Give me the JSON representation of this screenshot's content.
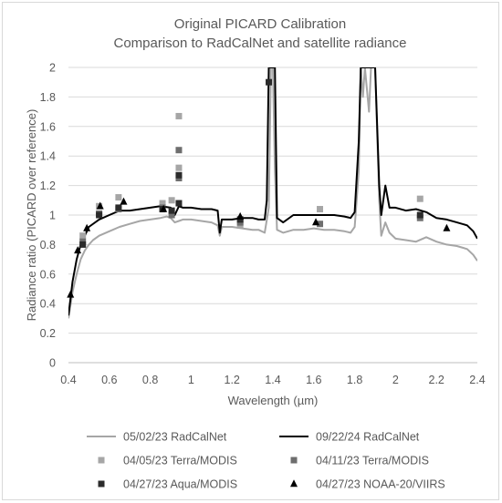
{
  "chart_data": {
    "type": "line",
    "title_line1": "Original PICARD Calibration",
    "title_line2": "Comparison to RadCalNet and satellite radiance",
    "xlabel": "Wavelength (µm)",
    "ylabel": "Radiance ratio (PICARD over reference)",
    "xlim": [
      0.4,
      2.4
    ],
    "ylim": [
      0,
      2
    ],
    "x_ticks": [
      "0.4",
      "0.6",
      "0.8",
      "1",
      "1.2",
      "1.4",
      "1.6",
      "1.8",
      "2",
      "2.2",
      "2.4"
    ],
    "y_ticks": [
      "0",
      "0.2",
      "0.4",
      "0.6",
      "0.8",
      "1",
      "1.2",
      "1.4",
      "1.6",
      "1.8",
      "2"
    ],
    "grid": "horizontal",
    "legend_position": "bottom",
    "series": [
      {
        "name": "05/02/23 RadCalNet",
        "kind": "line",
        "color": "#a6a6a6",
        "points": [
          [
            0.4,
            0.3
          ],
          [
            0.42,
            0.48
          ],
          [
            0.44,
            0.6
          ],
          [
            0.46,
            0.7
          ],
          [
            0.48,
            0.76
          ],
          [
            0.5,
            0.8
          ],
          [
            0.52,
            0.83
          ],
          [
            0.55,
            0.86
          ],
          [
            0.6,
            0.89
          ],
          [
            0.65,
            0.92
          ],
          [
            0.7,
            0.94
          ],
          [
            0.75,
            0.96
          ],
          [
            0.8,
            0.97
          ],
          [
            0.85,
            0.98
          ],
          [
            0.88,
            0.99
          ],
          [
            0.9,
            0.98
          ],
          [
            0.92,
            0.95
          ],
          [
            0.94,
            0.96
          ],
          [
            0.96,
            0.97
          ],
          [
            1.0,
            0.97
          ],
          [
            1.05,
            0.96
          ],
          [
            1.1,
            0.95
          ],
          [
            1.13,
            0.93
          ],
          [
            1.14,
            0.86
          ],
          [
            1.15,
            0.92
          ],
          [
            1.2,
            0.92
          ],
          [
            1.25,
            0.91
          ],
          [
            1.3,
            0.9
          ],
          [
            1.33,
            0.9
          ],
          [
            1.36,
            0.88
          ],
          [
            1.38,
            1.05
          ],
          [
            1.39,
            2.0
          ],
          [
            1.4,
            2.0
          ],
          [
            1.41,
            1.3
          ],
          [
            1.42,
            0.9
          ],
          [
            1.45,
            0.88
          ],
          [
            1.5,
            0.9
          ],
          [
            1.55,
            0.9
          ],
          [
            1.6,
            0.91
          ],
          [
            1.65,
            0.9
          ],
          [
            1.7,
            0.9
          ],
          [
            1.75,
            0.89
          ],
          [
            1.78,
            0.88
          ],
          [
            1.8,
            0.92
          ],
          [
            1.82,
            1.3
          ],
          [
            1.83,
            2.0
          ],
          [
            1.84,
            1.8
          ],
          [
            1.85,
            2.0
          ],
          [
            1.87,
            1.7
          ],
          [
            1.88,
            2.0
          ],
          [
            1.9,
            2.0
          ],
          [
            1.92,
            1.1
          ],
          [
            1.93,
            0.86
          ],
          [
            1.95,
            0.95
          ],
          [
            1.97,
            0.88
          ],
          [
            2.0,
            0.84
          ],
          [
            2.05,
            0.83
          ],
          [
            2.1,
            0.82
          ],
          [
            2.15,
            0.85
          ],
          [
            2.2,
            0.82
          ],
          [
            2.25,
            0.8
          ],
          [
            2.3,
            0.79
          ],
          [
            2.35,
            0.77
          ],
          [
            2.38,
            0.73
          ],
          [
            2.4,
            0.69
          ]
        ]
      },
      {
        "name": "09/22/24 RadCalNet",
        "kind": "line",
        "color": "#000000",
        "points": [
          [
            0.4,
            0.32
          ],
          [
            0.42,
            0.55
          ],
          [
            0.44,
            0.7
          ],
          [
            0.46,
            0.8
          ],
          [
            0.48,
            0.86
          ],
          [
            0.5,
            0.92
          ],
          [
            0.55,
            0.97
          ],
          [
            0.6,
            1.0
          ],
          [
            0.65,
            1.03
          ],
          [
            0.7,
            1.03
          ],
          [
            0.75,
            1.04
          ],
          [
            0.8,
            1.05
          ],
          [
            0.85,
            1.06
          ],
          [
            0.9,
            1.05
          ],
          [
            0.92,
            1.0
          ],
          [
            0.94,
            1.06
          ],
          [
            0.96,
            1.05
          ],
          [
            1.0,
            1.05
          ],
          [
            1.05,
            1.04
          ],
          [
            1.1,
            1.04
          ],
          [
            1.13,
            1.03
          ],
          [
            1.14,
            0.88
          ],
          [
            1.15,
            0.97
          ],
          [
            1.2,
            0.97
          ],
          [
            1.25,
            0.98
          ],
          [
            1.3,
            0.98
          ],
          [
            1.33,
            0.97
          ],
          [
            1.36,
            0.97
          ],
          [
            1.37,
            1.1
          ],
          [
            1.38,
            2.0
          ],
          [
            1.41,
            2.0
          ],
          [
            1.42,
            0.98
          ],
          [
            1.45,
            0.95
          ],
          [
            1.5,
            1.0
          ],
          [
            1.55,
            1.0
          ],
          [
            1.6,
            1.0
          ],
          [
            1.65,
            1.0
          ],
          [
            1.7,
            1.0
          ],
          [
            1.75,
            0.99
          ],
          [
            1.78,
            0.98
          ],
          [
            1.8,
            1.02
          ],
          [
            1.82,
            1.5
          ],
          [
            1.83,
            2.0
          ],
          [
            1.9,
            2.0
          ],
          [
            1.92,
            1.2
          ],
          [
            1.93,
            1.0
          ],
          [
            1.95,
            1.2
          ],
          [
            1.97,
            1.05
          ],
          [
            2.0,
            1.05
          ],
          [
            2.05,
            1.03
          ],
          [
            2.1,
            1.04
          ],
          [
            2.15,
            1.02
          ],
          [
            2.2,
            0.98
          ],
          [
            2.25,
            0.97
          ],
          [
            2.3,
            0.95
          ],
          [
            2.35,
            0.93
          ],
          [
            2.38,
            0.89
          ],
          [
            2.4,
            0.84
          ]
        ]
      },
      {
        "name": "04/05/23 Terra/MODIS",
        "kind": "square",
        "color": "#a6a6a6",
        "points": [
          [
            0.47,
            0.86
          ],
          [
            0.55,
            1.06
          ],
          [
            0.645,
            1.12
          ],
          [
            0.86,
            1.08
          ],
          [
            0.905,
            1.1
          ],
          [
            0.94,
            1.67
          ],
          [
            0.94,
            1.32
          ],
          [
            1.24,
            0.93
          ],
          [
            1.63,
            1.04
          ],
          [
            2.12,
            1.11
          ]
        ]
      },
      {
        "name": "04/11/23 Terra/MODIS",
        "kind": "square",
        "color": "#6e6e6e",
        "points": [
          [
            0.47,
            0.82
          ],
          [
            0.55,
            1.01
          ],
          [
            0.645,
            1.04
          ],
          [
            0.86,
            1.05
          ],
          [
            0.905,
            1.0
          ],
          [
            0.94,
            1.44
          ],
          [
            0.94,
            1.25
          ],
          [
            1.24,
            0.95
          ],
          [
            1.63,
            0.94
          ],
          [
            2.12,
            0.98
          ]
        ]
      },
      {
        "name": "04/27/23 Aqua/MODIS",
        "kind": "square",
        "color": "#2b2b2b",
        "points": [
          [
            0.47,
            0.8
          ],
          [
            0.55,
            1.0
          ],
          [
            0.645,
            1.05
          ],
          [
            0.86,
            1.04
          ],
          [
            0.905,
            1.03
          ],
          [
            0.94,
            1.27
          ],
          [
            0.94,
            1.08
          ],
          [
            1.24,
            0.97
          ],
          [
            1.38,
            1.9
          ],
          [
            2.12,
            1.0
          ]
        ]
      },
      {
        "name": "04/27/23 NOAA-20/VIIRS",
        "kind": "triangle",
        "color": "#000000",
        "points": [
          [
            0.41,
            0.46
          ],
          [
            0.445,
            0.76
          ],
          [
            0.49,
            0.91
          ],
          [
            0.555,
            1.06
          ],
          [
            0.67,
            1.09
          ],
          [
            0.865,
            1.04
          ],
          [
            1.24,
            0.99
          ],
          [
            1.61,
            0.95
          ],
          [
            2.25,
            0.91
          ]
        ]
      }
    ]
  }
}
